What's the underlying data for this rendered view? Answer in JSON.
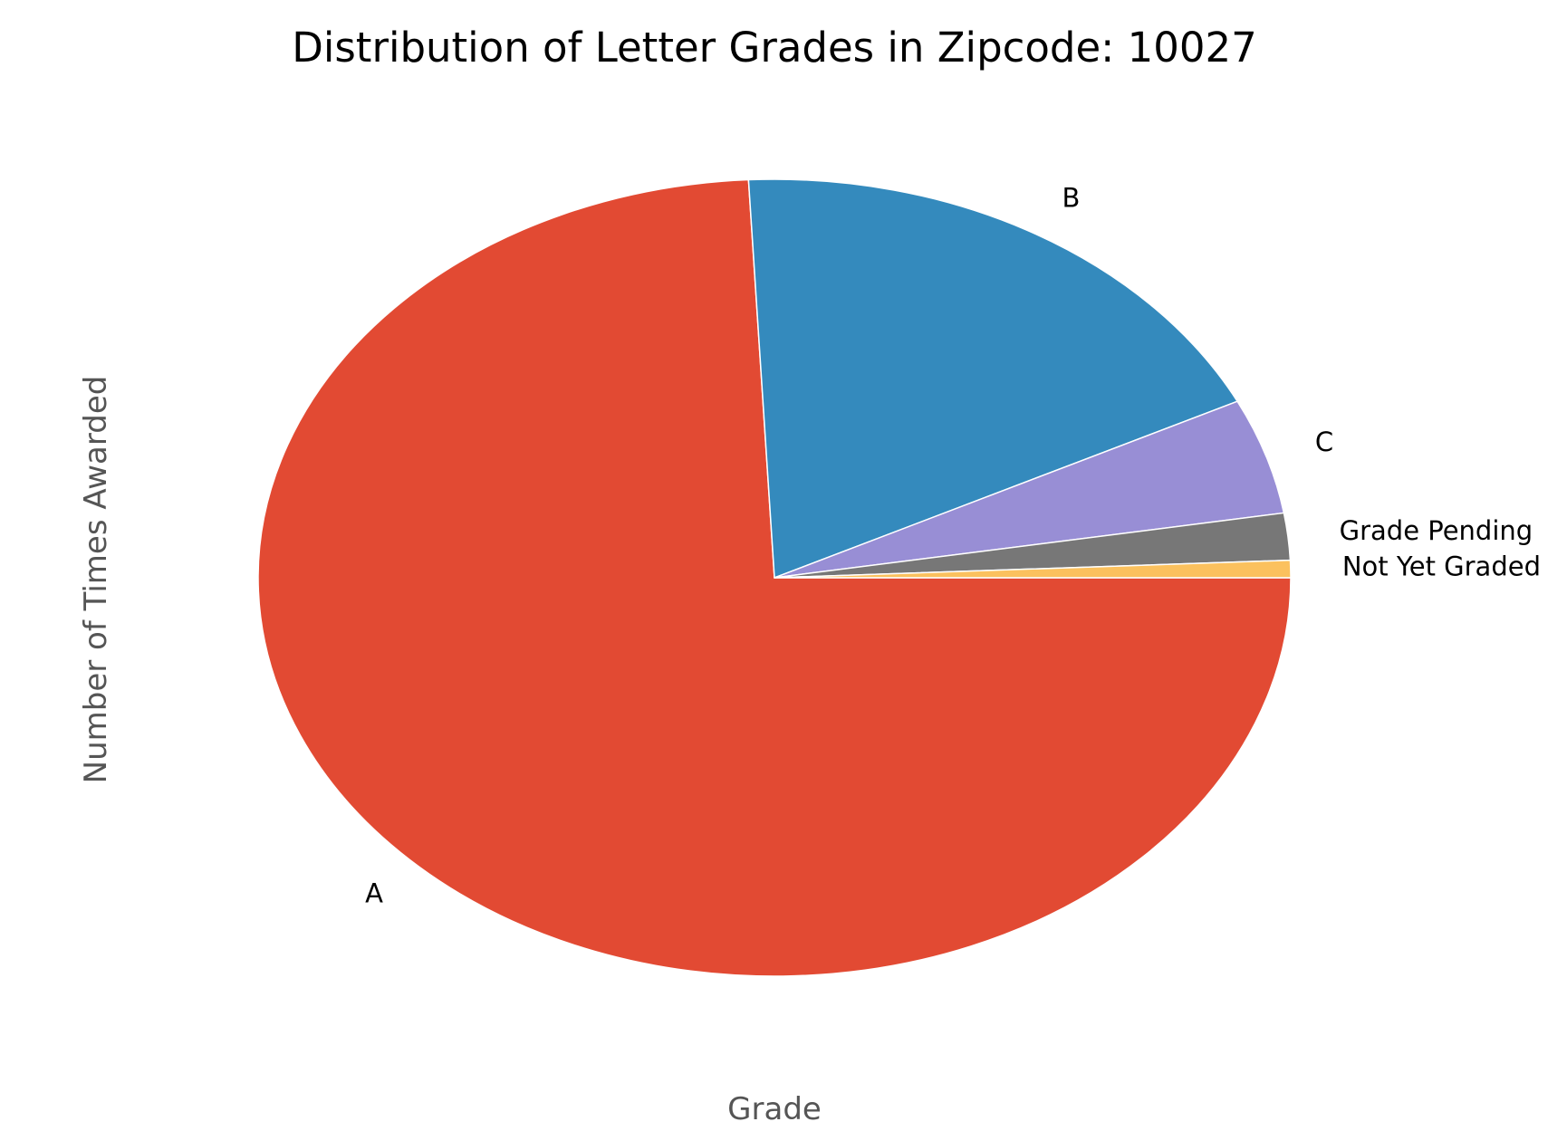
{
  "chart_data": {
    "type": "pie",
    "title": "Distribution of Letter Grades in Zipcode: 10027",
    "xlabel": "Grade",
    "ylabel": "Number of Times Awarded",
    "start_angle": 0,
    "direction": "clockwise",
    "slices": [
      {
        "label": "A",
        "value": 74.2,
        "color": "#E24A33"
      },
      {
        "label": "B",
        "value": 18.5,
        "color": "#348ABD"
      },
      {
        "label": "C",
        "value": 4.7,
        "color": "#988ED5"
      },
      {
        "label": "Grade Pending",
        "value": 1.9,
        "color": "#777777"
      },
      {
        "label": "Not Yet Graded",
        "value": 0.7,
        "color": "#FBC15E"
      }
    ],
    "edge_color": "#FFFFFF"
  }
}
